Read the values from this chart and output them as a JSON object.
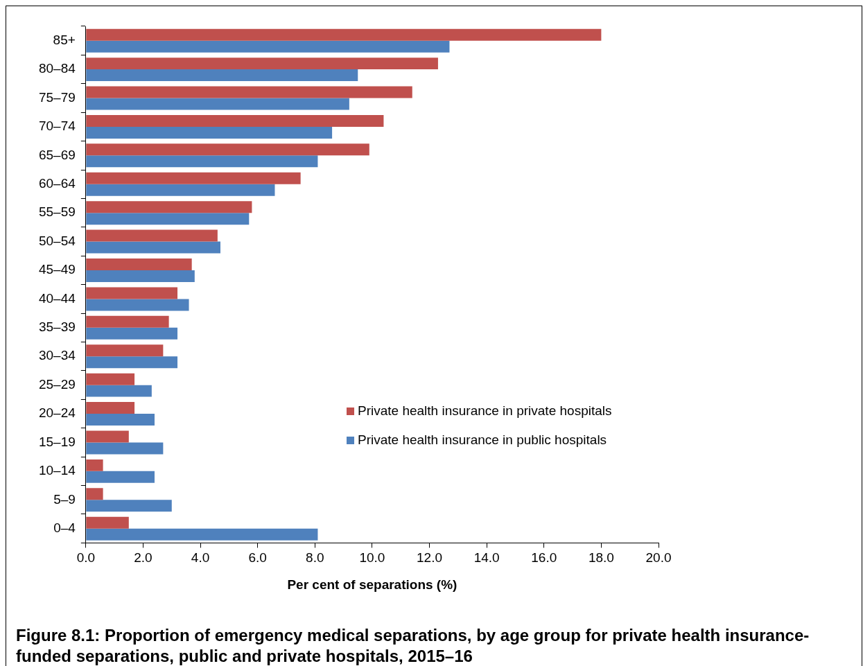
{
  "chart_data": {
    "type": "bar",
    "orientation": "horizontal",
    "title": "Figure 8.1: Proportion of emergency medical separations, by age group for private health insurance-funded separations, public and private hospitals, 2015–16",
    "xlabel": "Per cent of separations (%)",
    "categories": [
      "85+",
      "80–84",
      "75–79",
      "70–74",
      "65–69",
      "60–64",
      "55–59",
      "50–54",
      "45–49",
      "40–44",
      "35–39",
      "30–34",
      "25–29",
      "20–24",
      "15–19",
      "10–14",
      "5–9",
      "0–4"
    ],
    "series": [
      {
        "name": "Private health insurance in private hospitals",
        "color": "#c0504d",
        "values": [
          18.0,
          12.3,
          11.4,
          10.4,
          9.9,
          7.5,
          5.8,
          4.6,
          3.7,
          3.2,
          2.9,
          2.7,
          1.7,
          1.7,
          1.5,
          0.6,
          0.6,
          1.5
        ]
      },
      {
        "name": "Private health insurance in public hospitals",
        "color": "#4f81bd",
        "values": [
          12.7,
          9.5,
          9.2,
          8.6,
          8.1,
          6.6,
          5.7,
          4.7,
          3.8,
          3.6,
          3.2,
          3.2,
          2.3,
          2.4,
          2.7,
          2.4,
          3.0,
          8.1
        ]
      }
    ],
    "xlim": [
      0,
      20
    ],
    "xticks": [
      {
        "value": 0,
        "label": "0.0"
      },
      {
        "value": 2,
        "label": "2.0"
      },
      {
        "value": 4,
        "label": "4.0"
      },
      {
        "value": 6,
        "label": "6.0"
      },
      {
        "value": 8,
        "label": "8.0"
      },
      {
        "value": 10,
        "label": "10.0"
      },
      {
        "value": 12,
        "label": "12.0"
      },
      {
        "value": 14,
        "label": "14.0"
      },
      {
        "value": 16,
        "label": "16.0"
      },
      {
        "value": 18,
        "label": "18.0"
      },
      {
        "value": 20,
        "label": "20.0"
      }
    ],
    "grid": false,
    "legend": "right"
  }
}
